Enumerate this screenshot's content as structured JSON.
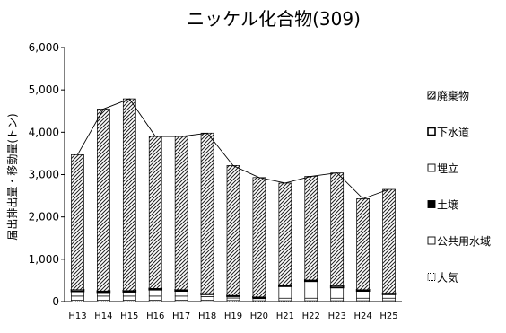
{
  "chart_data": {
    "type": "bar",
    "stacked": true,
    "title": "ニッケル化合物(309)",
    "xlabel": "",
    "ylabel": "届出排出量・移動量(トン)",
    "ylim": [
      0,
      6000
    ],
    "yticks": [
      0,
      1000,
      2000,
      3000,
      4000,
      5000,
      6000
    ],
    "ytick_labels": [
      "0",
      "1,000",
      "2,000",
      "3,000",
      "4,000",
      "5,000",
      "6,000"
    ],
    "grid": false,
    "legend_position": "right",
    "categories": [
      "H13",
      "H14",
      "H15",
      "H16",
      "H17",
      "H18",
      "H19",
      "H20",
      "H21",
      "H22",
      "H23",
      "H24",
      "H25"
    ],
    "series": [
      {
        "name": "大気",
        "color": "#ffffff",
        "pattern": "dots",
        "values": [
          30,
          30,
          30,
          30,
          30,
          30,
          25,
          20,
          20,
          20,
          20,
          20,
          20
        ]
      },
      {
        "name": "公共用水域",
        "color": "#ffffff",
        "pattern": "box",
        "values": [
          100,
          100,
          100,
          100,
          100,
          90,
          60,
          50,
          60,
          60,
          60,
          60,
          60
        ]
      },
      {
        "name": "土壌",
        "color": "#000000",
        "pattern": "solid",
        "values": [
          0,
          0,
          0,
          0,
          0,
          0,
          0,
          0,
          0,
          0,
          0,
          0,
          0
        ]
      },
      {
        "name": "埋立",
        "color": "#ffffff",
        "pattern": "light",
        "values": [
          110,
          90,
          100,
          150,
          120,
          50,
          40,
          20,
          280,
          400,
          250,
          170,
          90
        ]
      },
      {
        "name": "下水道",
        "color": "#ffffff",
        "pattern": "thick",
        "values": [
          40,
          30,
          30,
          30,
          30,
          20,
          20,
          20,
          30,
          30,
          40,
          30,
          30
        ]
      },
      {
        "name": "廃棄物",
        "color": "#ffffff",
        "pattern": "hatch",
        "values": [
          3190,
          4300,
          4530,
          3590,
          3620,
          3790,
          3070,
          2820,
          2410,
          2450,
          2670,
          2150,
          2450
        ]
      }
    ],
    "totals": [
      3470,
      4550,
      4790,
      3900,
      3900,
      3980,
      3210,
      2930,
      2800,
      2960,
      3040,
      2430,
      2650
    ]
  }
}
